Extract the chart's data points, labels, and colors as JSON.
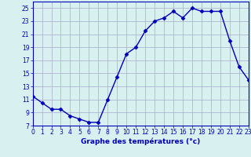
{
  "x": [
    0,
    1,
    2,
    3,
    4,
    5,
    6,
    7,
    8,
    9,
    10,
    11,
    12,
    13,
    14,
    15,
    16,
    17,
    18,
    19,
    20,
    21,
    22,
    23
  ],
  "y": [
    11.5,
    10.5,
    9.5,
    9.5,
    8.5,
    8.0,
    7.5,
    7.5,
    11.0,
    14.5,
    18.0,
    19.0,
    21.5,
    23.0,
    23.5,
    24.5,
    23.5,
    25.0,
    24.5,
    24.5,
    24.5,
    20.0,
    16.0,
    14.0
  ],
  "line_color": "#0000bb",
  "marker": "D",
  "bg_color": "#d8f0f0",
  "grid_color_major": "#aaaacc",
  "grid_color_minor": "#ccddee",
  "xlabel": "Graphe des températures (°c)",
  "xlim": [
    0,
    23
  ],
  "ylim": [
    7,
    26
  ],
  "yticks": [
    7,
    9,
    11,
    13,
    15,
    17,
    19,
    21,
    23,
    25
  ],
  "xticks": [
    0,
    1,
    2,
    3,
    4,
    5,
    6,
    7,
    8,
    9,
    10,
    11,
    12,
    13,
    14,
    15,
    16,
    17,
    18,
    19,
    20,
    21,
    22,
    23
  ],
  "axis_color": "#0000bb",
  "label_fontsize": 6.5,
  "tick_fontsize": 5.5,
  "marker_size": 2.5,
  "line_width": 1.0
}
